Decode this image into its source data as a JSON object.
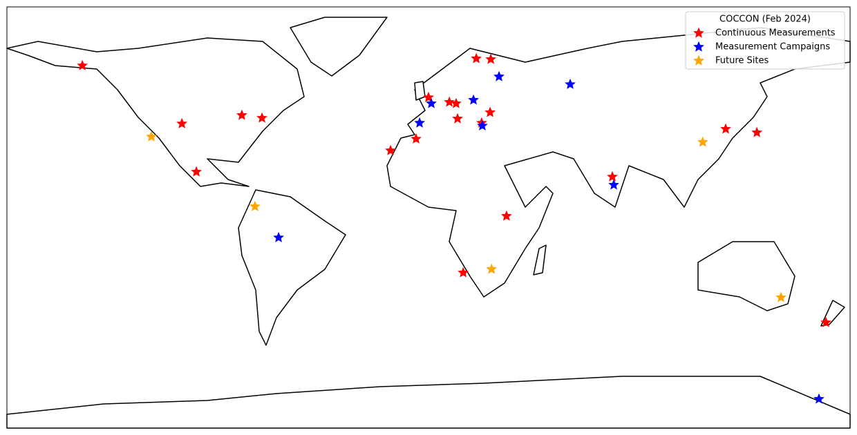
{
  "chart_data": {
    "type": "scatter",
    "legend_title": "COCCON (Feb 2024)",
    "legend": "upper right",
    "xlim": [
      -180,
      180
    ],
    "ylim": [
      -90,
      90
    ],
    "series": [
      {
        "name": "Continuous Measurements",
        "color": "#ff0000",
        "x": [
          -147.8,
          -105.3,
          -79.7,
          -71.1,
          -99.1,
          -16.2,
          -5.3,
          0,
          8.9,
          11.8,
          12.4,
          20.4,
          26.6,
          26.3,
          22.7,
          33.3,
          14.8,
          78.5,
          126.9,
          140.2,
          169.7
        ],
        "values": [
          64.9,
          40.1,
          43.7,
          42.5,
          19.5,
          28.6,
          33.6,
          51.3,
          49.3,
          48.7,
          42.2,
          67.9,
          67.6,
          44.9,
          40.4,
          0.6,
          -23.6,
          17.4,
          37.8,
          36.3,
          -44.9
        ]
      },
      {
        "name": "Measurement Campaigns",
        "color": "#0000ff",
        "x": [
          1.2,
          -3.8,
          19.2,
          23.0,
          30.1,
          60.5,
          79.1,
          -64.0,
          166.7
        ],
        "values": [
          48.7,
          40.4,
          50.2,
          39.2,
          60.2,
          56.9,
          13.9,
          -8.6,
          -77.6
        ]
      },
      {
        "name": "Future Sites",
        "color": "#ffa500",
        "x": [
          -118.3,
          -74.1,
          26.9,
          117.1,
          150.5
        ],
        "values": [
          34.5,
          4.7,
          -22.1,
          32.2,
          -34.2
        ]
      }
    ]
  }
}
